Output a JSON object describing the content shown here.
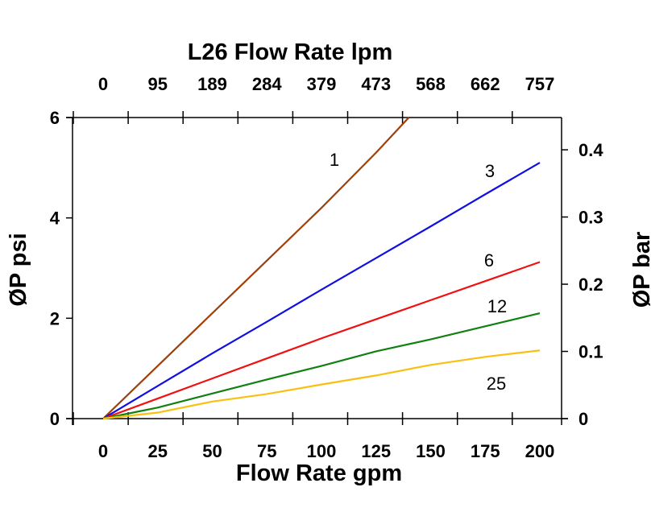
{
  "chart_data": {
    "type": "line",
    "title": "L26 Flow Rate lpm",
    "xlabel": "Flow Rate gpm",
    "ylabel": "ØP psi",
    "y2label": "ØP bar",
    "xlim": [
      0,
      200
    ],
    "ylim": [
      0,
      6
    ],
    "y2lim": [
      0,
      0.448
    ],
    "grid": false,
    "x_ticks": [
      0,
      25,
      50,
      75,
      100,
      125,
      150,
      175,
      200
    ],
    "x2_ticks": [
      "0",
      "95",
      "189",
      "284",
      "379",
      "473",
      "568",
      "662",
      "757"
    ],
    "y_ticks": [
      0,
      2,
      4,
      6
    ],
    "y2_ticks": [
      "0",
      "0.1",
      "0.2",
      "0.3",
      "0.4"
    ],
    "y2_tick_values": [
      0,
      0.1,
      0.2,
      0.3,
      0.4
    ],
    "series": [
      {
        "name": "1",
        "color": "#a0400a",
        "x": [
          0,
          25,
          50,
          75,
          100,
          125,
          140
        ],
        "values": [
          0,
          1.05,
          2.1,
          3.15,
          4.2,
          5.3,
          6.0
        ]
      },
      {
        "name": "3",
        "color": "#1010e0",
        "x": [
          0,
          25,
          50,
          75,
          100,
          125,
          150,
          175,
          200
        ],
        "values": [
          0,
          0.65,
          1.3,
          1.93,
          2.57,
          3.2,
          3.83,
          4.47,
          5.1
        ]
      },
      {
        "name": "6",
        "color": "#f01010",
        "x": [
          0,
          25,
          50,
          75,
          100,
          125,
          150,
          175,
          200
        ],
        "values": [
          0,
          0.4,
          0.8,
          1.2,
          1.6,
          1.98,
          2.36,
          2.74,
          3.12
        ]
      },
      {
        "name": "12",
        "color": "#108010",
        "x": [
          0,
          25,
          50,
          75,
          100,
          125,
          150,
          175,
          200
        ],
        "values": [
          0,
          0.22,
          0.5,
          0.78,
          1.05,
          1.34,
          1.58,
          1.84,
          2.1
        ]
      },
      {
        "name": "25",
        "color": "#f8c010",
        "x": [
          0,
          25,
          50,
          75,
          100,
          125,
          150,
          175,
          200
        ],
        "values": [
          0,
          0.12,
          0.34,
          0.49,
          0.68,
          0.86,
          1.07,
          1.23,
          1.36
        ]
      }
    ]
  }
}
